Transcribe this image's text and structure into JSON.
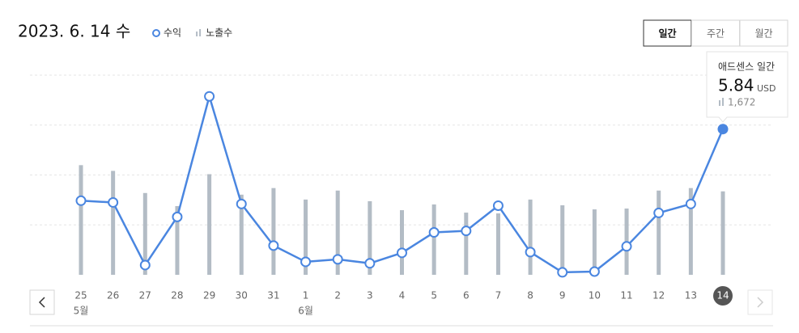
{
  "header": {
    "date": "2023. 6. 14 수"
  },
  "period_tabs": {
    "items": [
      "일간",
      "주간",
      "월간"
    ],
    "active": 0
  },
  "tooltip": {
    "title": "애드센스 일간",
    "unit": "USD"
  },
  "chart_data": {
    "type": "combo",
    "categories": [
      "25",
      "26",
      "27",
      "28",
      "29",
      "30",
      "31",
      "1",
      "2",
      "3",
      "4",
      "5",
      "6",
      "7",
      "8",
      "9",
      "10",
      "11",
      "12",
      "13",
      "14"
    ],
    "x_sublabels": [
      "5월",
      null,
      null,
      null,
      null,
      null,
      null,
      "6월",
      null,
      null,
      null,
      null,
      null,
      null,
      null,
      null,
      null,
      null,
      null,
      null,
      null
    ],
    "selected_index": 20,
    "series": [
      {
        "name": "수익",
        "type": "line",
        "color": "#4a86e0",
        "values": [
          2.97,
          2.9,
          0.39,
          2.32,
          7.15,
          2.84,
          1.17,
          0.52,
          0.62,
          0.46,
          0.88,
          1.7,
          1.76,
          2.77,
          0.91,
          0.1,
          0.13,
          1.14,
          2.48,
          2.84,
          5.84
        ]
      },
      {
        "name": "노출수",
        "type": "bar",
        "axis": "y2",
        "color": "#b3bcc5",
        "values": [
          2197,
          2082,
          1639,
          1377,
          2016,
          1606,
          1738,
          1508,
          1688,
          1475,
          1295,
          1410,
          1246,
          1230,
          1508,
          1393,
          1311,
          1328,
          1688,
          1738,
          1672
        ],
        "value_labels": [
          null,
          null,
          null,
          null,
          null,
          null,
          null,
          null,
          null,
          null,
          null,
          null,
          null,
          null,
          null,
          null,
          null,
          null,
          null,
          null,
          "1,672"
        ]
      }
    ],
    "ylim": [
      0,
      8
    ],
    "yticks": [
      2,
      4,
      6,
      8
    ],
    "y2lim": [
      0,
      4000
    ],
    "grid": true
  }
}
